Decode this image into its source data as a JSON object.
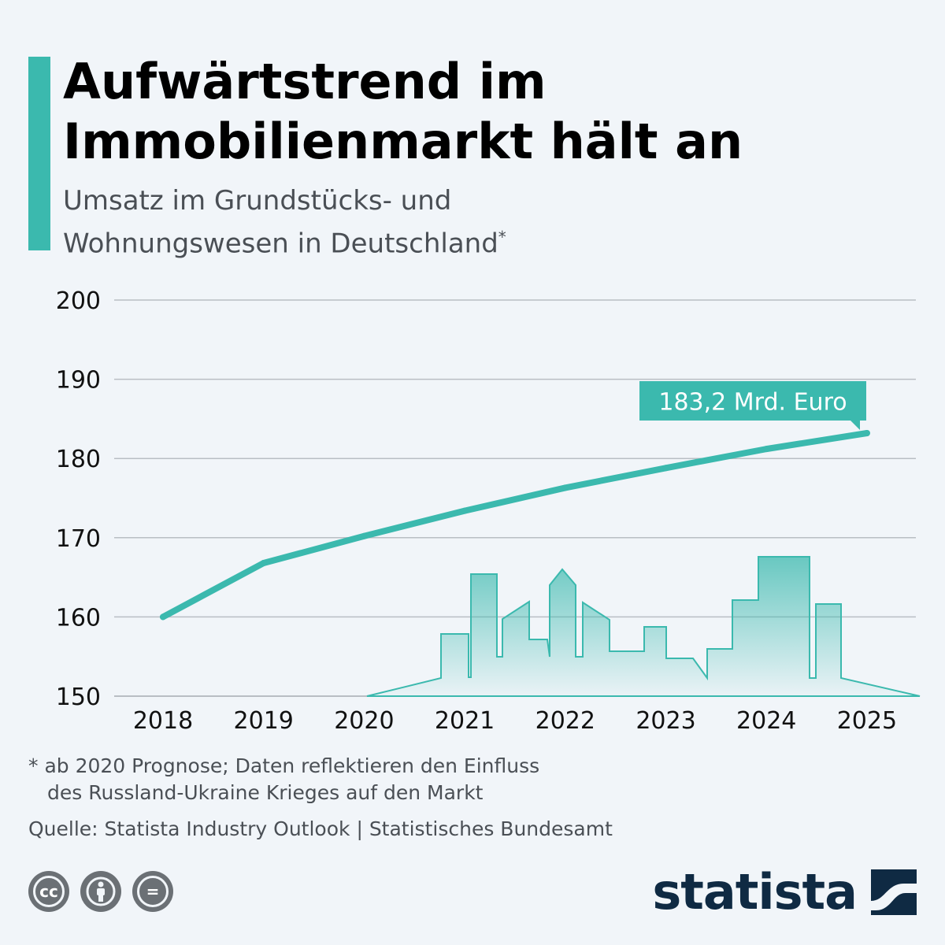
{
  "header": {
    "title_line1": "Aufwärtstrend im",
    "title_line2": "Immobilienmarkt hält an",
    "subtitle_line1": "Umsatz im Grundstücks- und",
    "subtitle_line2": "Wohnungswesen in Deutschland",
    "subtitle_mark": "*"
  },
  "colors": {
    "accent": "#3bb9ae",
    "grid": "#b9bec4",
    "text": "#111111",
    "muted": "#4a4f55",
    "brand": "#0f2a43"
  },
  "chart_data": {
    "type": "line",
    "x": [
      "2018",
      "2019",
      "2020",
      "2021",
      "2022",
      "2023",
      "2024",
      "2025"
    ],
    "series": [
      {
        "values": [
          160.0,
          166.8,
          170.2,
          173.4,
          176.3,
          178.8,
          181.2,
          183.2
        ]
      }
    ],
    "ylim": [
      150,
      200
    ],
    "yticks": [
      150,
      160,
      170,
      180,
      190,
      200
    ],
    "grid": true,
    "annotation": {
      "text": "183,2 Mrd. Euro",
      "category": "2025"
    }
  },
  "footer": {
    "note_line1": "* ab 2020 Prognose; Daten reflektieren den Einfluss",
    "note_line2": "des Russland-Ukraine Krieges auf den Markt",
    "source": "Quelle: Statista Industry Outlook | Statistisches Bundesamt",
    "brand": "statista",
    "license_icons": [
      "cc-icon",
      "attribution-icon",
      "no-derivatives-icon"
    ],
    "cc_label": "cc",
    "nd_label": "="
  }
}
